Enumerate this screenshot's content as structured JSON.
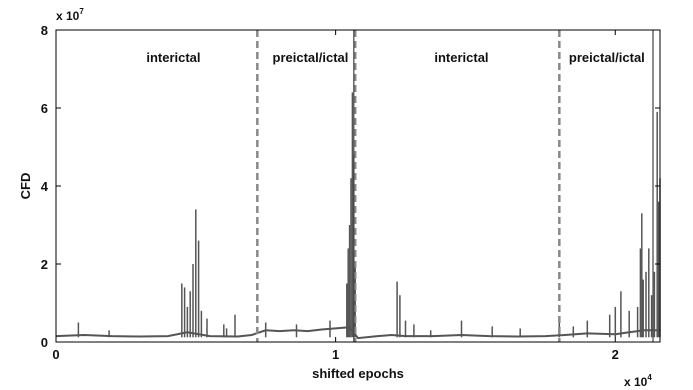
{
  "chart_data": {
    "type": "line",
    "xlabel": "shifted epochs",
    "ylabel": "CFD",
    "x_multiplier": "x 10",
    "x_multiplier_exp": "4",
    "y_multiplier": "x 10",
    "y_multiplier_exp": "7",
    "xlim": [
      0,
      2.16
    ],
    "ylim": [
      0,
      8
    ],
    "x_ticks": [
      {
        "value": 0,
        "label": "0"
      },
      {
        "value": 1,
        "label": "1"
      },
      {
        "value": 2,
        "label": "2"
      }
    ],
    "y_ticks": [
      {
        "value": 0,
        "label": "0"
      },
      {
        "value": 2,
        "label": "2"
      },
      {
        "value": 4,
        "label": "4"
      },
      {
        "value": 6,
        "label": "6"
      },
      {
        "value": 8,
        "label": "8"
      }
    ],
    "grid": false,
    "line_color": "#555555",
    "boundaries": [
      {
        "x": 0.72,
        "style": "dashed"
      },
      {
        "x": 1.07,
        "style": "dashed"
      },
      {
        "x": 1.8,
        "style": "dashed"
      }
    ],
    "solid_markers": [
      {
        "x": 1.065
      },
      {
        "x": 2.135
      }
    ],
    "regions": [
      {
        "label": "interictal",
        "x_center": 0.42
      },
      {
        "label": "preictal/ictal",
        "x_center": 0.91
      },
      {
        "label": "interictal",
        "x_center": 1.45
      },
      {
        "label": "preictal/ictal",
        "x_center": 1.97
      }
    ],
    "series": [
      {
        "baseline": [
          [
            0.0,
            0.15
          ],
          [
            0.1,
            0.18
          ],
          [
            0.2,
            0.15
          ],
          [
            0.3,
            0.14
          ],
          [
            0.4,
            0.15
          ],
          [
            0.47,
            0.25
          ],
          [
            0.55,
            0.15
          ],
          [
            0.65,
            0.14
          ],
          [
            0.7,
            0.18
          ],
          [
            0.75,
            0.3
          ],
          [
            0.8,
            0.28
          ],
          [
            0.85,
            0.3
          ],
          [
            0.9,
            0.28
          ],
          [
            0.95,
            0.32
          ],
          [
            1.0,
            0.35
          ],
          [
            1.05,
            0.38
          ],
          [
            1.08,
            0.1
          ],
          [
            1.15,
            0.15
          ],
          [
            1.2,
            0.18
          ],
          [
            1.25,
            0.15
          ],
          [
            1.35,
            0.15
          ],
          [
            1.45,
            0.18
          ],
          [
            1.55,
            0.15
          ],
          [
            1.65,
            0.14
          ],
          [
            1.75,
            0.15
          ],
          [
            1.82,
            0.18
          ],
          [
            1.9,
            0.22
          ],
          [
            2.0,
            0.2
          ],
          [
            2.05,
            0.25
          ],
          [
            2.1,
            0.3
          ],
          [
            2.16,
            0.3
          ]
        ],
        "spikes": [
          [
            0.08,
            0.5
          ],
          [
            0.19,
            0.3
          ],
          [
            0.45,
            1.5
          ],
          [
            0.46,
            1.4
          ],
          [
            0.47,
            0.9
          ],
          [
            0.48,
            1.3
          ],
          [
            0.49,
            2.0
          ],
          [
            0.5,
            3.4
          ],
          [
            0.51,
            2.6
          ],
          [
            0.52,
            0.8
          ],
          [
            0.54,
            0.6
          ],
          [
            0.6,
            0.45
          ],
          [
            0.61,
            0.35
          ],
          [
            0.64,
            0.7
          ],
          [
            0.75,
            0.5
          ],
          [
            0.86,
            0.45
          ],
          [
            0.98,
            0.55
          ],
          [
            1.04,
            1.5
          ],
          [
            1.045,
            2.4
          ],
          [
            1.05,
            3.0
          ],
          [
            1.055,
            4.2
          ],
          [
            1.06,
            6.4
          ],
          [
            1.065,
            4.8
          ],
          [
            1.07,
            2.0
          ],
          [
            1.22,
            1.55
          ],
          [
            1.23,
            1.2
          ],
          [
            1.25,
            0.55
          ],
          [
            1.28,
            0.45
          ],
          [
            1.34,
            0.3
          ],
          [
            1.45,
            0.55
          ],
          [
            1.56,
            0.4
          ],
          [
            1.66,
            0.35
          ],
          [
            1.8,
            0.5
          ],
          [
            1.85,
            0.4
          ],
          [
            1.9,
            0.55
          ],
          [
            1.98,
            0.7
          ],
          [
            2.0,
            0.9
          ],
          [
            2.02,
            1.3
          ],
          [
            2.05,
            0.8
          ],
          [
            2.08,
            0.9
          ],
          [
            2.09,
            2.4
          ],
          [
            2.095,
            3.3
          ],
          [
            2.1,
            1.6
          ],
          [
            2.11,
            1.8
          ],
          [
            2.12,
            2.4
          ],
          [
            2.13,
            1.2
          ],
          [
            2.14,
            1.8
          ],
          [
            2.15,
            5.9
          ],
          [
            2.155,
            3.6
          ],
          [
            2.16,
            4.2
          ]
        ]
      }
    ]
  }
}
